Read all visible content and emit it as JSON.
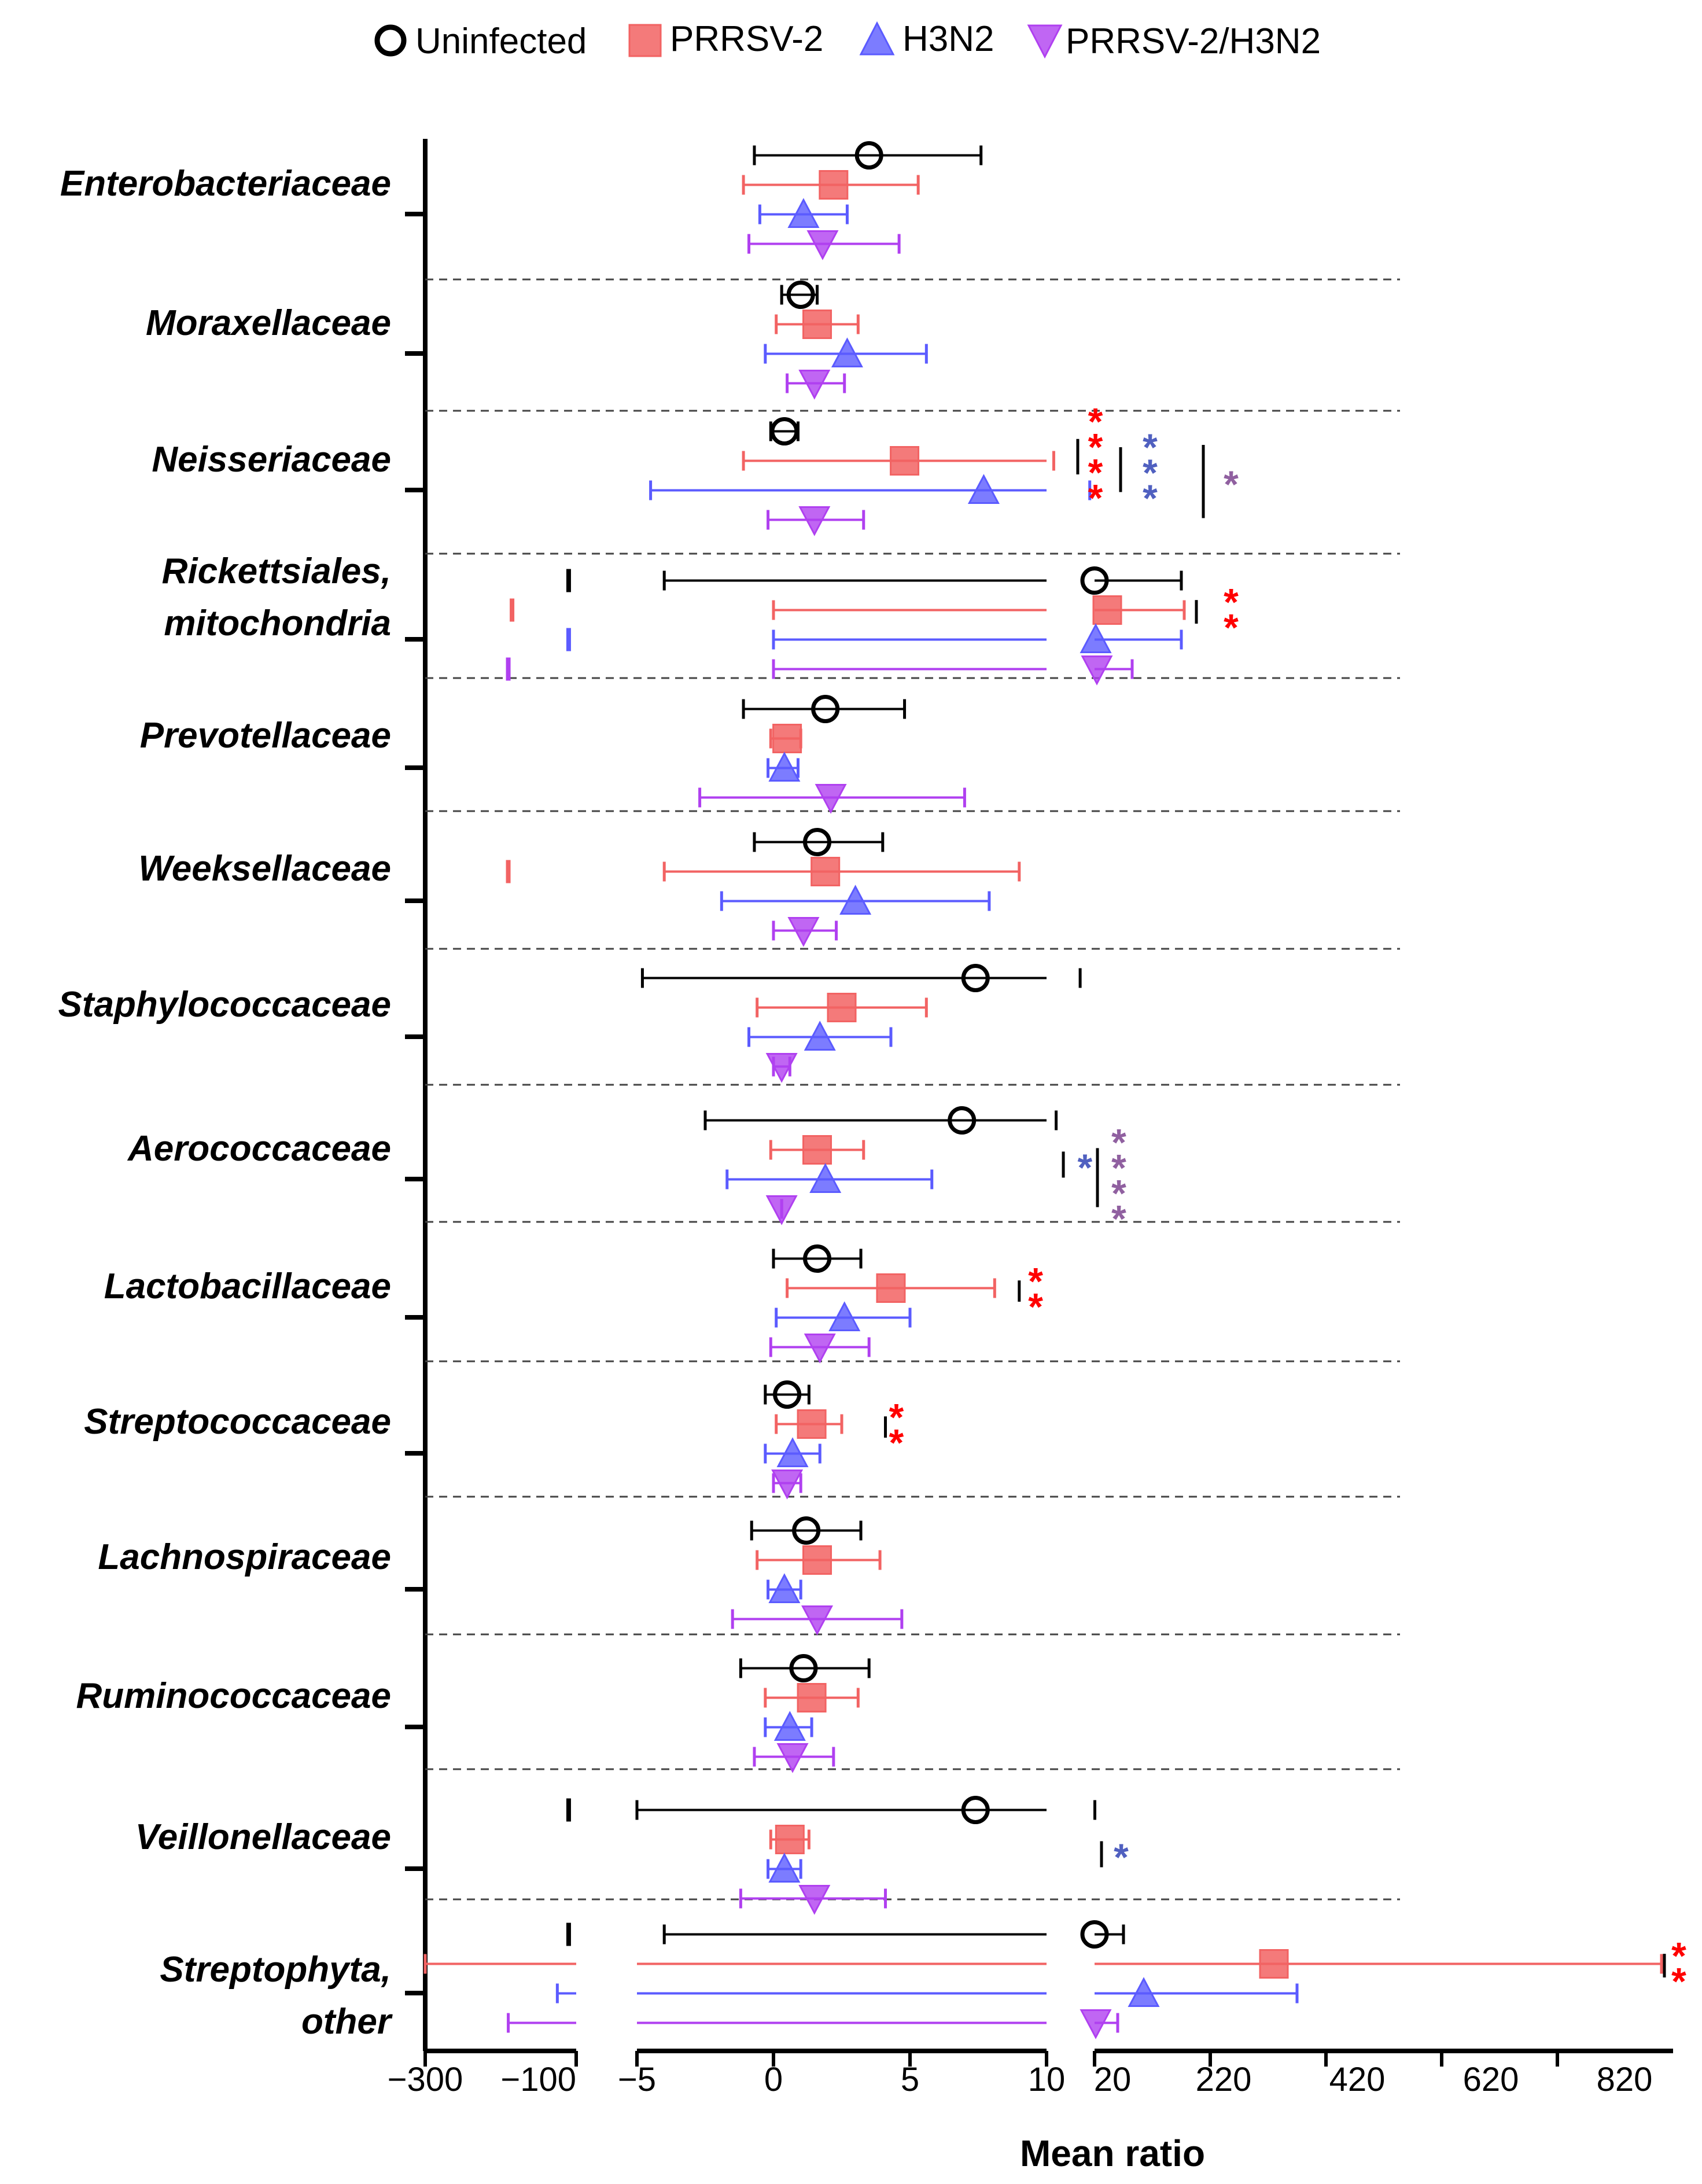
{
  "chart_data": {
    "type": "scatter",
    "subtype": "forest-plot with error bars, broken x-axis",
    "xlabel": "Mean ratio",
    "x_axis_segments": [
      {
        "range": [
          -300,
          -100
        ],
        "ticks": [
          -300,
          -100
        ]
      },
      {
        "range": [
          -5,
          10
        ],
        "ticks": [
          -5,
          0,
          5,
          10
        ]
      },
      {
        "range": [
          20,
          1020
        ],
        "ticks": [
          20,
          220,
          420,
          620,
          820
        ]
      }
    ],
    "tick_labels": [
      "−300",
      "−100",
      "−5",
      "0",
      "5",
      "10",
      "20",
      "220",
      "420",
      "620",
      "820"
    ],
    "legend": [
      {
        "name": "Uninfected",
        "color": "#000000",
        "marker": "open-circle"
      },
      {
        "name": "PRRSV-2",
        "color": "#f26363",
        "marker": "square"
      },
      {
        "name": "H3N2",
        "color": "#5b5bff",
        "marker": "triangle-up"
      },
      {
        "name": "PRRSV-2/H3N2",
        "color": "#b040f0",
        "marker": "triangle-down"
      }
    ],
    "colors": {
      "Uninfected": "#000000",
      "PRRSV-2": "#f26363",
      "H3N2": "#5b5bff",
      "PRRSV-2/H3N2": "#b040f0",
      "star_red": "#ff0000",
      "star_blue": "#5060c0",
      "star_purple": "#9060a0"
    },
    "families": [
      {
        "name": "Enterobacteriaceae",
        "lines": [
          "Enterobacteriaceae"
        ],
        "series": [
          [
            3.5,
            -0.7,
            7.6
          ],
          [
            2.2,
            -1.1,
            5.3
          ],
          [
            1.1,
            -0.5,
            2.7
          ],
          [
            1.8,
            -0.9,
            4.6
          ]
        ],
        "sig": []
      },
      {
        "name": "Moraxellaceae",
        "lines": [
          "Moraxellaceae"
        ],
        "series": [
          [
            1.0,
            0.3,
            1.6
          ],
          [
            1.6,
            0.1,
            3.1
          ],
          [
            2.7,
            -0.3,
            5.6
          ],
          [
            1.5,
            0.5,
            2.6
          ]
        ],
        "sig": []
      },
      {
        "name": "Neisseriaceae",
        "lines": [
          "Neisseriaceae"
        ],
        "series": [
          [
            0.4,
            -0.1,
            0.9
          ],
          [
            4.8,
            -1.1,
            11.5
          ],
          [
            7.7,
            -4.5,
            19.0
          ],
          [
            1.5,
            -0.2,
            3.3
          ]
        ],
        "sig": [
          {
            "stars": "****",
            "color": "star_red",
            "bar_x": 16.5,
            "y1": -0.62,
            "y2": -0.02,
            "sx": 21.5,
            "sy": -0.32
          },
          {
            "stars": "***",
            "color": "star_blue",
            "bar_x": 65,
            "y1": -0.48,
            "y2": 0.28,
            "sx": 116,
            "sy": -0.1
          },
          {
            "stars": "*",
            "color": "star_purple",
            "bar_x": 208,
            "y1": -0.52,
            "y2": 0.72,
            "sx": 256,
            "sy": 0.1
          }
        ]
      },
      {
        "name": "Rickettsiales, mitochondria",
        "lines": [
          "Rickettsiales,",
          "mitochondria"
        ],
        "series": [
          [
            20.0,
            -4.0,
            170
          ],
          [
            42,
            0,
            175
          ],
          [
            22,
            0,
            170
          ],
          [
            24,
            0,
            85
          ]
        ],
        "series_extra": [
          -110,
          -185,
          -110,
          -190
        ],
        "sig": [
          {
            "stars": "**",
            "color": "star_red",
            "bar_x": 196,
            "y1": -0.42,
            "y2": -0.02,
            "sx": 256,
            "sy": -0.22
          }
        ]
      },
      {
        "name": "Prevotellaceae",
        "lines": [
          "Prevotellaceae"
        ],
        "series": [
          [
            1.9,
            -1.1,
            4.8
          ],
          [
            0.5,
            -0.1,
            1.0
          ],
          [
            0.4,
            -0.2,
            0.9
          ],
          [
            2.1,
            -2.7,
            7.0
          ]
        ],
        "sig": []
      },
      {
        "name": "Weeksellaceae",
        "lines": [
          "Weeksellaceae"
        ],
        "series": [
          [
            1.6,
            -0.7,
            4.0
          ],
          [
            1.9,
            -4.0,
            9.0
          ],
          [
            3.0,
            -1.9,
            7.9
          ],
          [
            1.1,
            0.0,
            2.3
          ]
        ],
        "series_extra": [
          null,
          -190,
          null,
          null
        ],
        "sig": []
      },
      {
        "name": "Staphylococcaceae",
        "lines": [
          "Staphylococcaceae"
        ],
        "series": [
          [
            7.4,
            -4.8,
            17.0
          ],
          [
            2.5,
            -0.6,
            5.6
          ],
          [
            1.7,
            -0.9,
            4.3
          ],
          [
            0.3,
            0.0,
            0.6
          ]
        ],
        "sig": []
      },
      {
        "name": "Aerococcaceae",
        "lines": [
          "Aerococcaceae"
        ],
        "series": [
          [
            6.9,
            -2.5,
            12.0
          ],
          [
            1.6,
            -0.1,
            3.3
          ],
          [
            1.9,
            -1.7,
            5.8
          ],
          [
            0.3,
            0.3,
            0.3
          ]
        ],
        "sig": [
          {
            "stars": "*",
            "color": "star_blue",
            "bar_x": 13.5,
            "y1": -0.22,
            "y2": 0.22,
            "sx": 18,
            "sy": 0.0
          },
          {
            "stars": "****",
            "color": "star_purple",
            "bar_x": 25,
            "y1": -0.28,
            "y2": 0.72,
            "sx": 62,
            "sy": 0.22
          }
        ]
      },
      {
        "name": "Lactobacillaceae",
        "lines": [
          "Lactobacillaceae"
        ],
        "series": [
          [
            1.6,
            0.0,
            3.2
          ],
          [
            4.3,
            0.5,
            8.1
          ],
          [
            2.6,
            0.1,
            5.0
          ],
          [
            1.7,
            -0.1,
            3.5
          ]
        ],
        "sig": [
          {
            "stars": "**",
            "color": "star_red",
            "bar_x": 9.0,
            "y1": -0.38,
            "y2": -0.02,
            "sx": 9.6,
            "sy": -0.2
          }
        ]
      },
      {
        "name": "Streptococcaceae",
        "lines": [
          "Streptococcaceae"
        ],
        "series": [
          [
            0.5,
            -0.3,
            1.3
          ],
          [
            1.4,
            0.1,
            2.5
          ],
          [
            0.7,
            -0.3,
            1.7
          ],
          [
            0.5,
            0.0,
            1.0
          ]
        ],
        "sig": [
          {
            "stars": "**",
            "color": "star_red",
            "bar_x": 4.1,
            "y1": -0.38,
            "y2": -0.02,
            "sx": 4.5,
            "sy": -0.2
          }
        ]
      },
      {
        "name": "Lachnospiraceae",
        "lines": [
          "Lachnospiraceae"
        ],
        "series": [
          [
            1.2,
            -0.8,
            3.2
          ],
          [
            1.6,
            -0.6,
            3.9
          ],
          [
            0.4,
            -0.2,
            1.0
          ],
          [
            1.6,
            -1.5,
            4.7
          ]
        ],
        "sig": []
      },
      {
        "name": "Ruminococcaceae",
        "lines": [
          "Ruminococcaceae"
        ],
        "series": [
          [
            1.1,
            -1.2,
            3.5
          ],
          [
            1.4,
            -0.3,
            3.1
          ],
          [
            0.6,
            -0.3,
            1.4
          ],
          [
            0.7,
            -0.7,
            2.2
          ]
        ],
        "sig": []
      },
      {
        "name": "Veillonellaceae",
        "lines": [
          "Veillonellaceae"
        ],
        "series": [
          [
            7.4,
            -5.0,
            20.5
          ],
          [
            0.6,
            -0.1,
            1.3
          ],
          [
            0.4,
            -0.2,
            1.0
          ],
          [
            1.5,
            -1.2,
            4.1
          ]
        ],
        "series_extra": [
          -110,
          null,
          null,
          null
        ],
        "sig": [
          {
            "stars": "*",
            "color": "star_blue",
            "bar_x": 32,
            "y1": -0.22,
            "y2": 0.22,
            "sx": 66,
            "sy": 0.0
          }
        ]
      },
      {
        "name": "Streptophyta, other",
        "lines": [
          "Streptophyta,",
          "other"
        ],
        "series": [
          [
            20.0,
            -4.0,
            70
          ],
          [
            330,
            -320,
            1000
          ],
          [
            105,
            -125,
            370
          ],
          [
            22,
            -190,
            60
          ]
        ],
        "series_extra": [
          -110,
          null,
          null,
          null
        ],
        "sig": [
          {
            "stars": "**",
            "color": "star_red",
            "bar_x": 1005,
            "y1": -0.42,
            "y2": -0.02,
            "sx": 1030,
            "sy": -0.22
          }
        ]
      }
    ]
  }
}
